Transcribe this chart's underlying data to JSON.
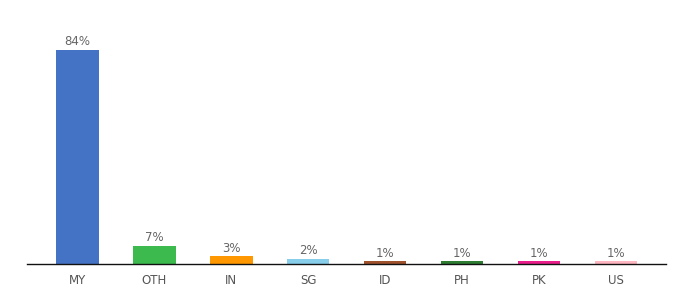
{
  "categories": [
    "MY",
    "OTH",
    "IN",
    "SG",
    "ID",
    "PH",
    "PK",
    "US"
  ],
  "values": [
    84,
    7,
    3,
    2,
    1,
    1,
    1,
    1
  ],
  "labels": [
    "84%",
    "7%",
    "3%",
    "2%",
    "1%",
    "1%",
    "1%",
    "1%"
  ],
  "bar_colors": [
    "#4472c4",
    "#3dba4e",
    "#ff9800",
    "#87ceeb",
    "#a0522d",
    "#2e7d32",
    "#e91e8c",
    "#ffb6c1"
  ],
  "background_color": "#ffffff",
  "ylim": [
    0,
    94
  ],
  "label_fontsize": 8.5,
  "tick_fontsize": 8.5,
  "bar_width": 0.55
}
